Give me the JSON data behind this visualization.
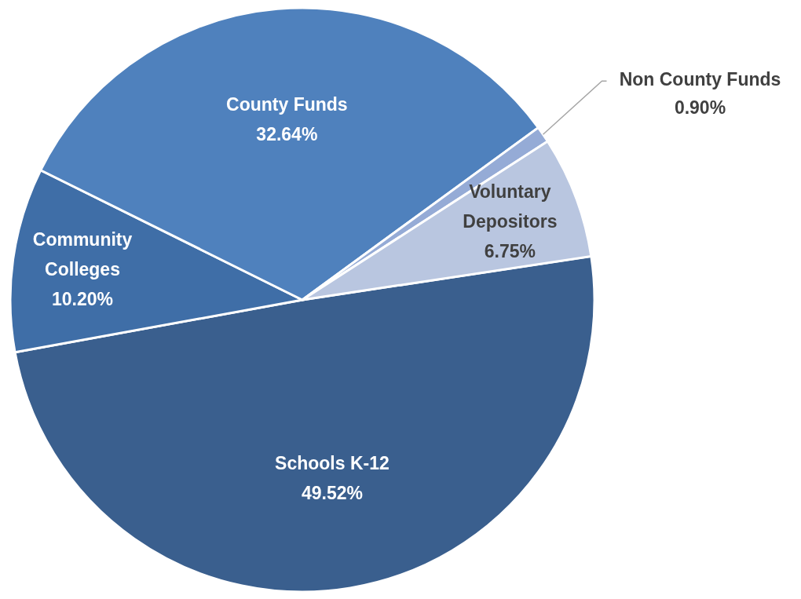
{
  "chart_data": {
    "type": "pie",
    "categories": [
      "Schools K-12",
      "Community Colleges",
      "County Funds",
      "Non County Funds",
      "Voluntary Depositors"
    ],
    "values": [
      49.52,
      10.2,
      32.64,
      0.9,
      6.75
    ],
    "value_labels": [
      "49.52%",
      "10.20%",
      "32.64%",
      "0.90%",
      "6.75%"
    ],
    "colors": [
      "#3a5f8e",
      "#3f6ea7",
      "#4f81bd",
      "#95abd6",
      "#b9c6e0"
    ]
  }
}
